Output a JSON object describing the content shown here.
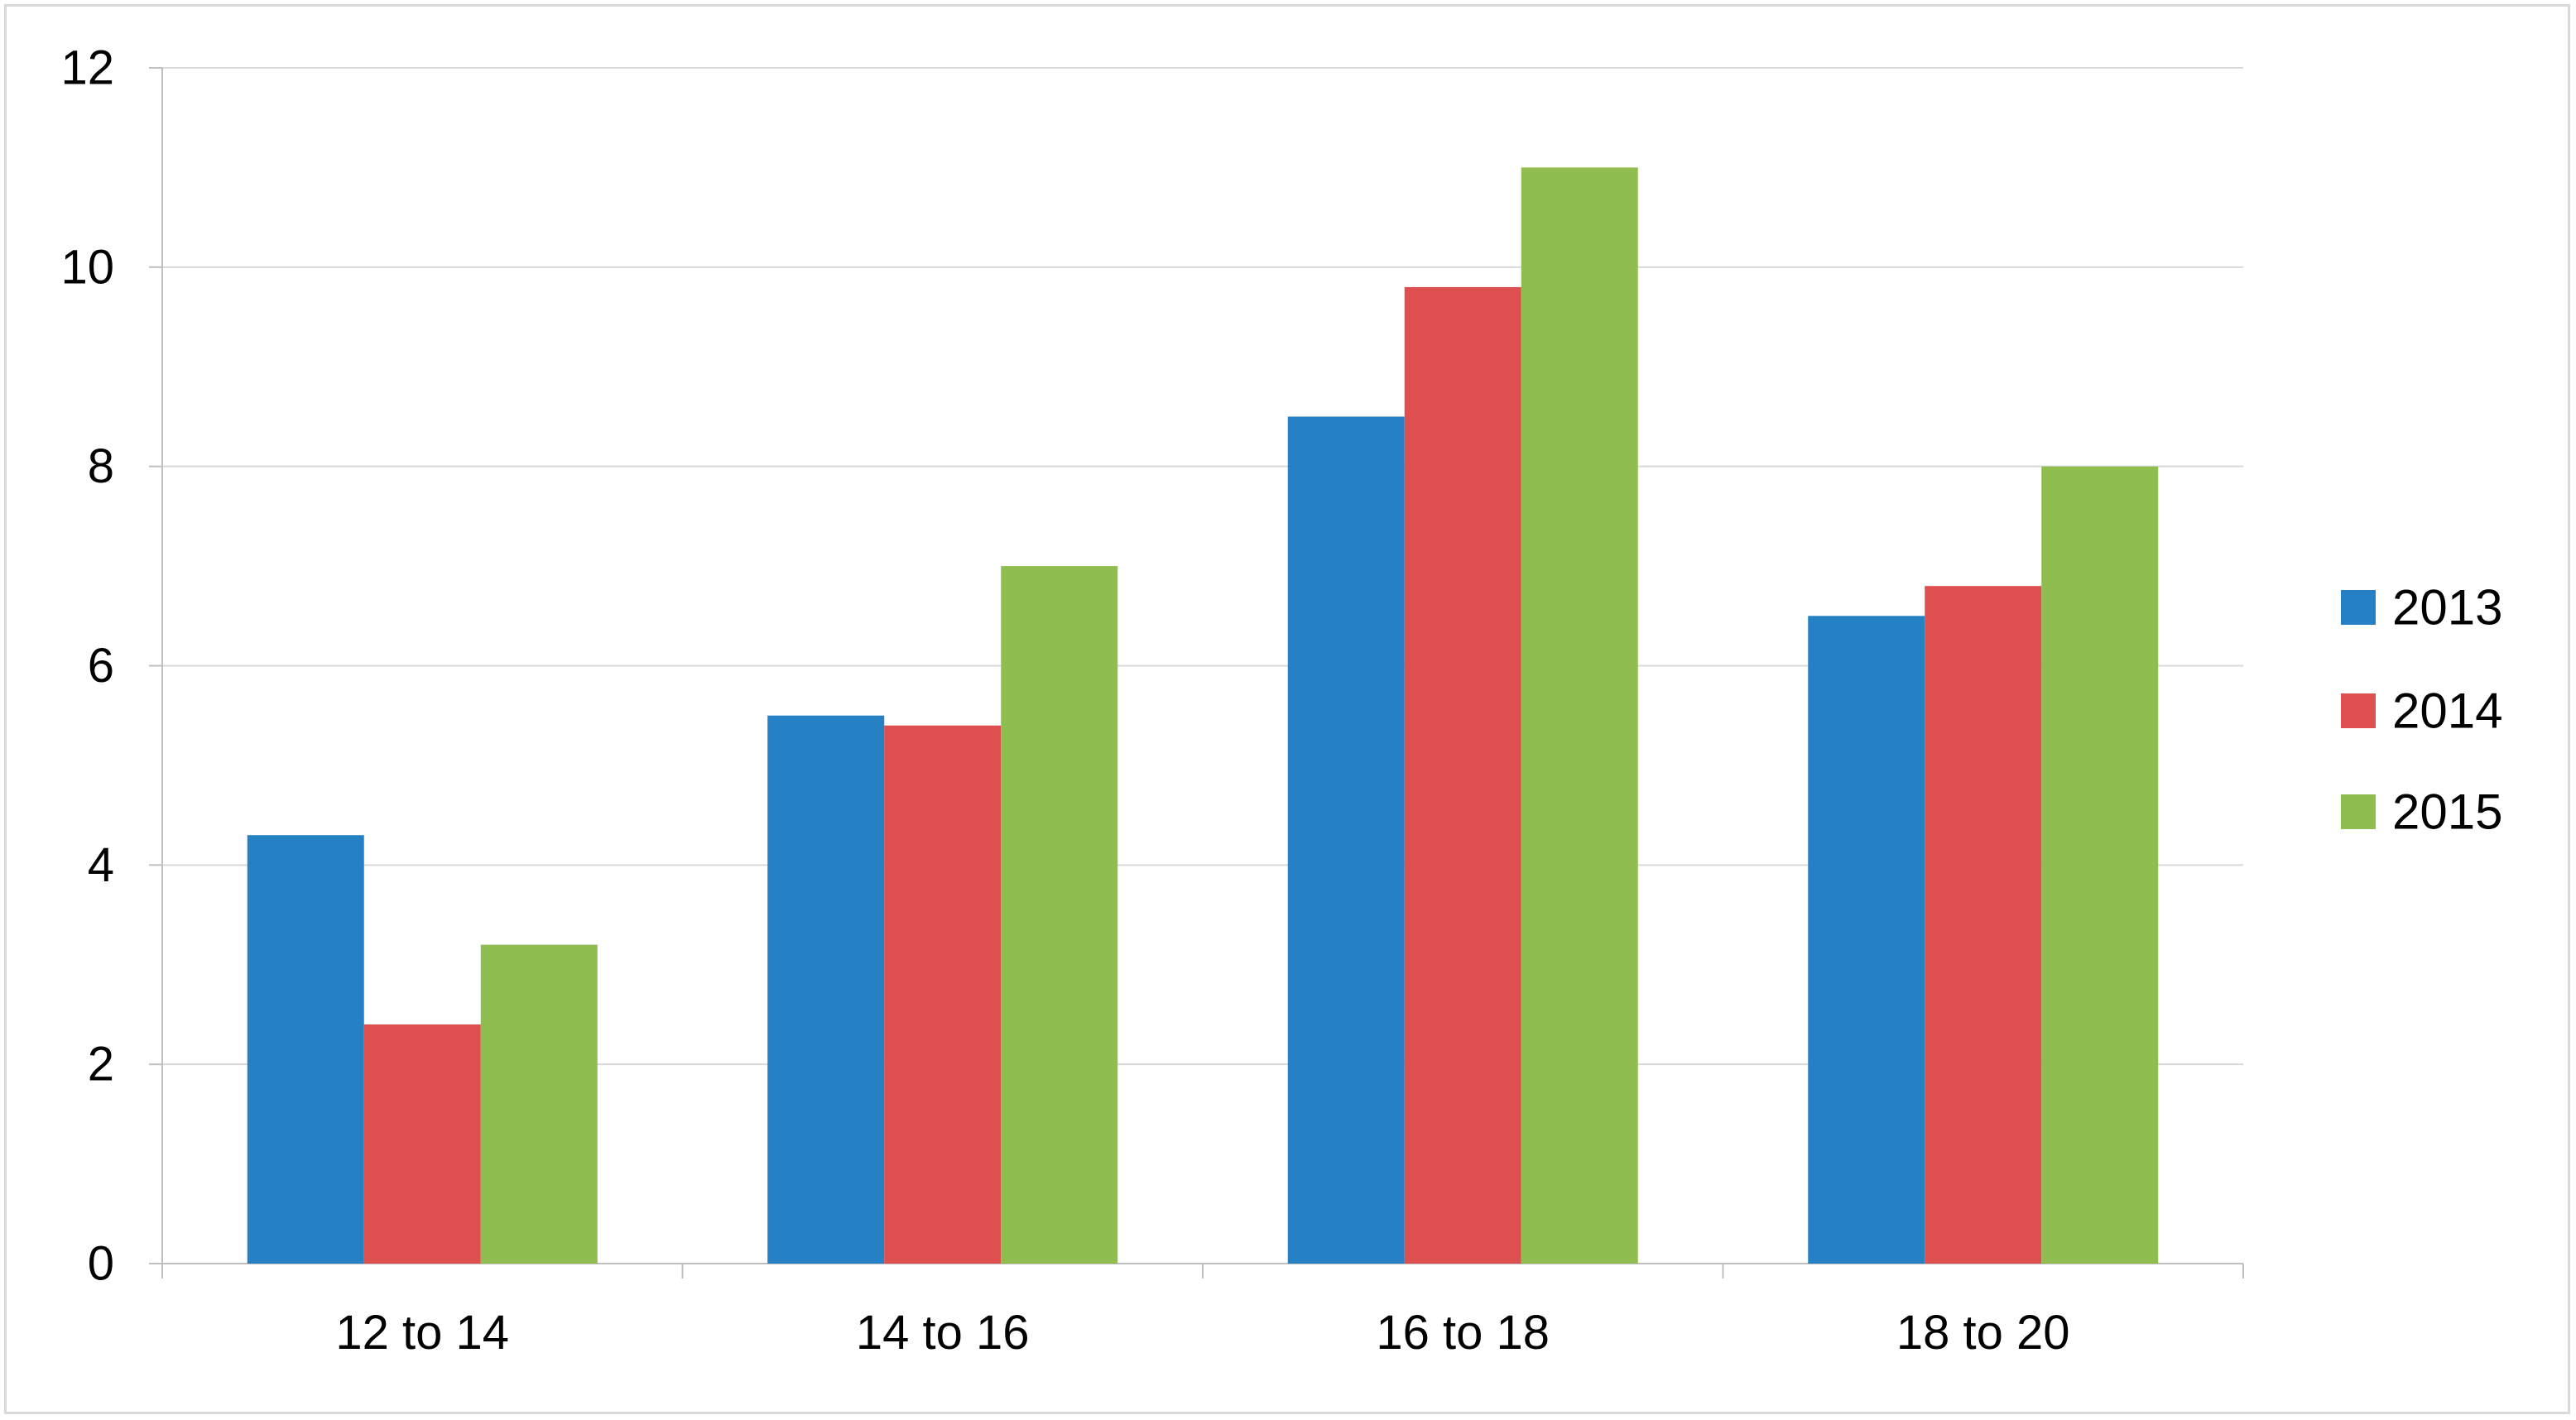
{
  "chart_data": {
    "type": "bar",
    "title": "",
    "xlabel": "",
    "ylabel": "",
    "categories": [
      "12 to 14",
      "14 to 16",
      "16 to 18",
      "18 to 20"
    ],
    "series": [
      {
        "name": "2013",
        "color": "#2581c4",
        "values": [
          4.3,
          5.5,
          8.5,
          6.5
        ]
      },
      {
        "name": "2014",
        "color": "#de4f4f",
        "values": [
          2.4,
          5.4,
          9.8,
          6.8
        ]
      },
      {
        "name": "2015",
        "color": "#8fbd50",
        "values": [
          3.2,
          7.0,
          11.0,
          8.0
        ]
      }
    ],
    "ylim": [
      0,
      12
    ],
    "yticks": [
      "0",
      "2",
      "4",
      "6",
      "8",
      "10",
      "12"
    ],
    "grid": true,
    "legend_position": "right"
  }
}
